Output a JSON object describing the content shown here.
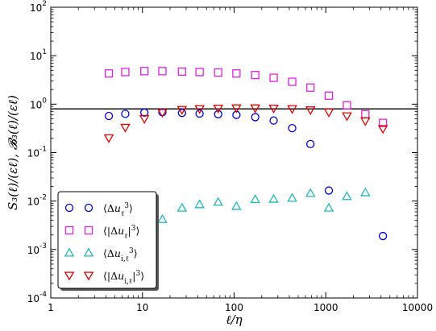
{
  "chart_data": {
    "type": "scatter",
    "xlabel": "ℓ/η",
    "ylabel": "S₃(ℓ)/(εℓ), 𝓑₃(ℓ)/(εℓ)",
    "xscale": "log",
    "yscale": "log",
    "xlim": [
      1,
      10000
    ],
    "ylim": [
      0.0001,
      100
    ],
    "x_ticks": [
      {
        "value": 1,
        "label": "1"
      },
      {
        "value": 10,
        "label": "10"
      },
      {
        "value": 100,
        "label": "100"
      },
      {
        "value": 1000,
        "label": "1000"
      },
      {
        "value": 10000,
        "label": "10000"
      }
    ],
    "y_ticks": [
      {
        "value": 0.0001,
        "base": "10",
        "exp": "-4"
      },
      {
        "value": 0.001,
        "base": "10",
        "exp": "-3"
      },
      {
        "value": 0.01,
        "base": "10",
        "exp": "-2"
      },
      {
        "value": 0.1,
        "base": "10",
        "exp": "-1"
      },
      {
        "value": 1,
        "base": "10",
        "exp": "0"
      },
      {
        "value": 10,
        "base": "10",
        "exp": "1"
      },
      {
        "value": 100,
        "base": "10",
        "exp": "2"
      }
    ],
    "reference_line": {
      "y": 0.8,
      "color": "#000000"
    },
    "legend_position": "lower-left",
    "series": [
      {
        "name": "⟨Δu_ℓ³⟩",
        "marker": "circle",
        "color": "#0000dd",
        "points": [
          [
            4.3,
            0.57
          ],
          [
            6.5,
            0.63
          ],
          [
            10.5,
            0.67
          ],
          [
            16.5,
            0.68
          ],
          [
            27,
            0.66
          ],
          [
            42,
            0.64
          ],
          [
            67,
            0.62
          ],
          [
            106,
            0.6
          ],
          [
            170,
            0.54
          ],
          [
            270,
            0.46
          ],
          [
            430,
            0.32
          ],
          [
            680,
            0.15
          ],
          [
            1080,
            0.0165
          ],
          [
            4200,
            0.0019
          ]
        ]
      },
      {
        "name": "⟨|Δu_ℓ|³⟩",
        "marker": "square",
        "color": "#e020e0",
        "points": [
          [
            4.3,
            4.3
          ],
          [
            6.5,
            4.6
          ],
          [
            10.5,
            4.8
          ],
          [
            16.5,
            4.8
          ],
          [
            27,
            4.7
          ],
          [
            42,
            4.6
          ],
          [
            67,
            4.5
          ],
          [
            106,
            4.3
          ],
          [
            170,
            4.0
          ],
          [
            270,
            3.5
          ],
          [
            430,
            2.9
          ],
          [
            680,
            2.2
          ],
          [
            1080,
            1.5
          ],
          [
            1700,
            0.95
          ],
          [
            2700,
            0.62
          ],
          [
            4200,
            0.41
          ]
        ]
      },
      {
        "name": "⟨Δu_{i,ℓ}³⟩",
        "marker": "triangle-up",
        "color": "#20b8b8",
        "points": [
          [
            16.5,
            0.0042
          ],
          [
            27,
            0.0072
          ],
          [
            42,
            0.0085
          ],
          [
            67,
            0.0095
          ],
          [
            106,
            0.0078
          ],
          [
            170,
            0.0108
          ],
          [
            270,
            0.011
          ],
          [
            430,
            0.0115
          ],
          [
            680,
            0.0145
          ],
          [
            1080,
            0.0072
          ],
          [
            1700,
            0.0125
          ],
          [
            2700,
            0.015
          ]
        ]
      },
      {
        "name": "⟨|Δu_{i,ℓ}|³⟩",
        "marker": "triangle-down",
        "color": "#e00000",
        "points": [
          [
            4.3,
            0.2
          ],
          [
            6.5,
            0.33
          ],
          [
            10.5,
            0.5
          ],
          [
            16.5,
            0.67
          ],
          [
            27,
            0.77
          ],
          [
            42,
            0.8
          ],
          [
            67,
            0.82
          ],
          [
            106,
            0.83
          ],
          [
            170,
            0.83
          ],
          [
            270,
            0.82
          ],
          [
            430,
            0.8
          ],
          [
            680,
            0.76
          ],
          [
            1080,
            0.68
          ],
          [
            1700,
            0.57
          ],
          [
            2700,
            0.45
          ],
          [
            4200,
            0.31
          ]
        ]
      }
    ]
  }
}
